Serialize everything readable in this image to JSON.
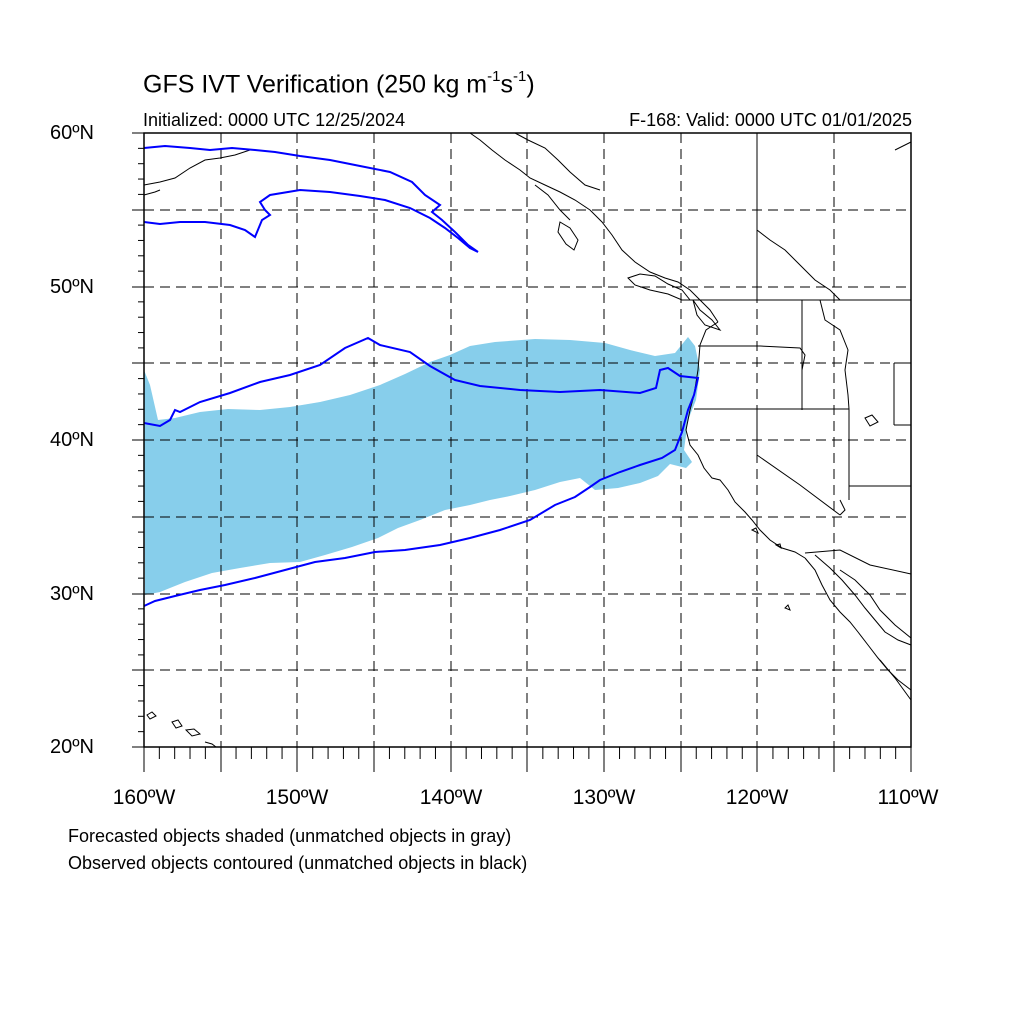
{
  "title": {
    "prefix": "GFS IVT Verification (250 kg m",
    "exp1": "-1",
    "mid": "s",
    "exp2": "-1",
    "suffix": ")"
  },
  "subtitle_left": "Initialized: 0000 UTC 12/25/2024",
  "subtitle_right": "F-168: Valid: 0000 UTC 01/01/2025",
  "lat_labels": [
    "60ºN",
    "50ºN",
    "40ºN",
    "30ºN",
    "20ºN"
  ],
  "lon_labels": [
    "160ºW",
    "150ºW",
    "140ºW",
    "130ºW",
    "120ºW",
    "110ºW"
  ],
  "captions": [
    "Forecasted objects shaded (unmatched objects in gray)",
    "Observed objects contoured (unmatched objects in black)"
  ],
  "colors": {
    "forecast_fill": "#87ceeb",
    "observed_contour": "#0000ff",
    "coastline": "#000000",
    "grid": "#000000"
  },
  "extent": {
    "lon_min": -160,
    "lon_max": -110,
    "lat_min": 20,
    "lat_max": 60
  }
}
